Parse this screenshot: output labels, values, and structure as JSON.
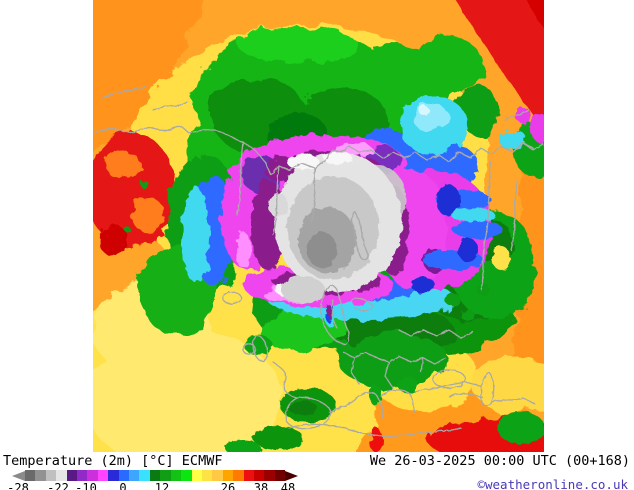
{
  "legend": {
    "title": "Temperature (2m) [°C] ECMWF",
    "timestamp": "We 26-03-2025 00:00 UTC (00+168)",
    "copyright": "©weatheronline.co.uk",
    "copyright_color": "#4a3ab4",
    "scale": {
      "unit": "°C",
      "ticks": [
        "-28",
        "-22",
        "-10",
        "0",
        "12",
        "26",
        "38",
        "48"
      ],
      "colors": [
        "#6a6a6a",
        "#929292",
        "#c0c0c0",
        "#e6e6e6",
        "#5a1a86",
        "#922ac8",
        "#cc30dc",
        "#ff45ff",
        "#2a2ad8",
        "#2a6bff",
        "#3fa6ff",
        "#3ae1ff",
        "#0a7a12",
        "#0f9e14",
        "#12c316",
        "#0ce60e",
        "#ffff45",
        "#ffe345",
        "#ffc945",
        "#ffa500",
        "#ff7a00",
        "#ee1010",
        "#c80000",
        "#9a0000",
        "#700000"
      ],
      "left_arrow_color": "#8a8a8a",
      "right_arrow_color": "#4a0000"
    }
  },
  "map": {
    "description": "Northern hemisphere polar-stereographic 2m temperature field, Arctic cold core over the pole, Europe at bottom",
    "palette": {
      "orange": "#ffa629",
      "deep_orange": "#ff931c",
      "red": "#e51212",
      "dark_red": "#c00000",
      "yellow": "#ffdf45",
      "light_yellow": "#ffe96e",
      "bright_green": "#1ecf1e",
      "green": "#14b514",
      "dark_green": "#0a8f0e",
      "darker_green": "#067a0c",
      "cyan": "#3fd9f0",
      "light_cyan": "#8fe9fa",
      "blue": "#2f6bff",
      "dark_blue": "#1f2fd4",
      "magenta": "#ee44ee",
      "pink": "#ff8fff",
      "purple": "#8b1f8b",
      "violet": "#6b2fae",
      "gray_light": "#e4e4e4",
      "gray": "#c8c8c8",
      "gray_mid": "#a4a4a4",
      "gray_dark": "#8e8e8e",
      "coastline": "#a9a9a9"
    }
  }
}
